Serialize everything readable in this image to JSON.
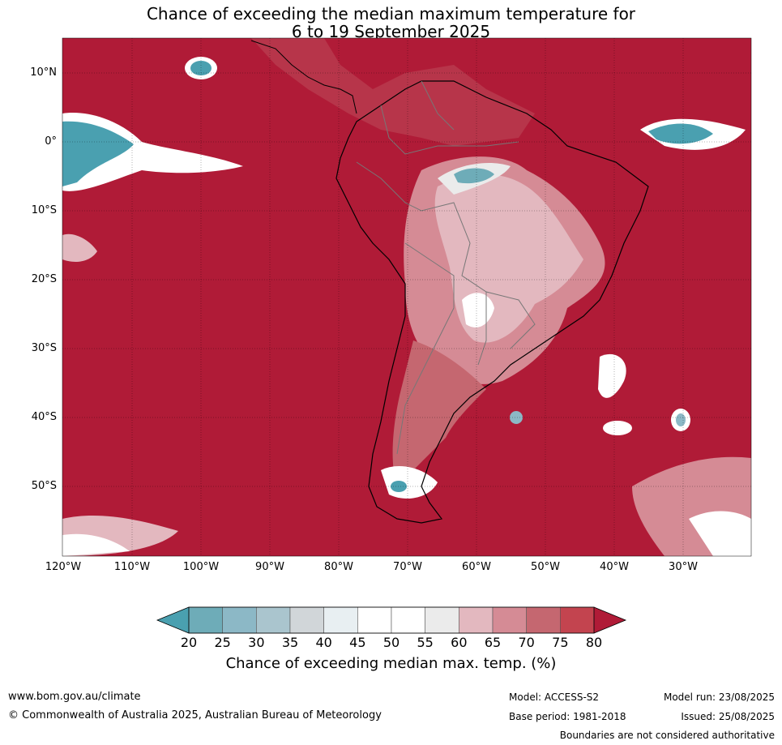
{
  "title_line1": "Chance of exceeding the median maximum temperature for",
  "title_line2": "6 to 19 September 2025",
  "map": {
    "background_color": "#b01b37",
    "lat_labels": [
      "10°N",
      "0°",
      "10°S",
      "20°S",
      "30°S",
      "40°S",
      "50°S"
    ],
    "lon_labels": [
      "120°W",
      "110°W",
      "100°W",
      "90°W",
      "80°W",
      "70°W",
      "60°W",
      "50°W",
      "40°W",
      "30°W"
    ]
  },
  "colorbar": {
    "ticks": [
      "20",
      "25",
      "30",
      "35",
      "40",
      "45",
      "50",
      "55",
      "60",
      "65",
      "70",
      "75",
      "80"
    ],
    "colors": [
      "#4aa0b0",
      "#6eacb8",
      "#8cb8c6",
      "#aac5ce",
      "#d1d6d9",
      "#e8eff2",
      "#ffffff",
      "#ffffff",
      "#ebebeb",
      "#e3b8bf",
      "#d58b95",
      "#c56770",
      "#c3444f",
      "#b01b37"
    ],
    "label": "Chance of exceeding median max. temp. (%)"
  },
  "footer": {
    "website": "www.bom.gov.au/climate",
    "copyright": "© Commonwealth of Australia 2025, Australian Bureau of Meteorology",
    "model": "Model: ACCESS-S2",
    "base_period": "Base period: 1981-2018",
    "model_run": "Model run: 23/08/2025",
    "issued": "Issued: 25/08/2025",
    "disclaimer": "Boundaries are not considered authoritative"
  }
}
